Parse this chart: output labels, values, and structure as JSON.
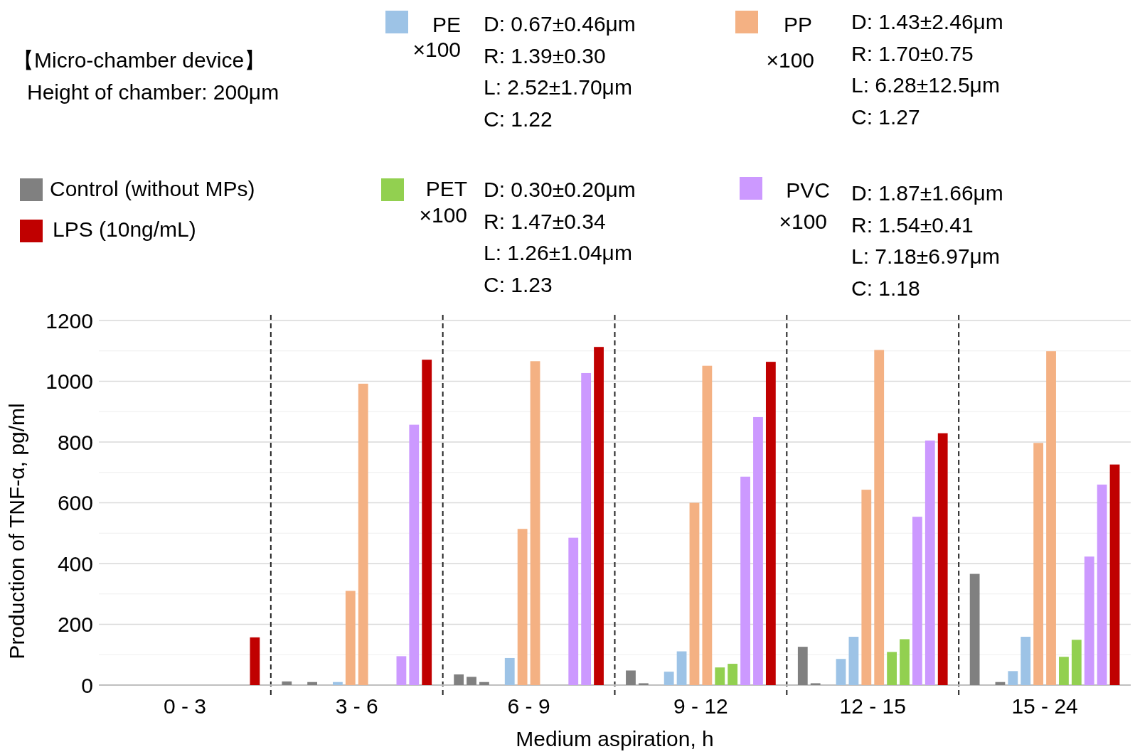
{
  "chart_data": {
    "type": "bar",
    "xlabel": "Medium aspiration, h",
    "ylabel": "Production of TNF-α, pg/ml",
    "categories": [
      "0 - 3",
      "3 - 6",
      "6 - 9",
      "9 - 12",
      "12 - 15",
      "15 - 24"
    ],
    "series": [
      {
        "name": "Control (without MPs)",
        "color": "#808080",
        "values": [
          null,
          12,
          35,
          48,
          126,
          366
        ]
      },
      {
        "color": "#808080",
        "values": [
          null,
          null,
          27,
          6,
          6,
          null
        ]
      },
      {
        "color": "#808080",
        "values": [
          null,
          10,
          10,
          null,
          null,
          10
        ]
      },
      {
        "name": "PE",
        "color": "#9dc3e6",
        "values": [
          null,
          null,
          null,
          44,
          86,
          46
        ]
      },
      {
        "color": "#9dc3e6",
        "values": [
          null,
          10,
          89,
          111,
          159,
          159
        ]
      },
      {
        "name": "PP",
        "color": "#f4b183",
        "values": [
          null,
          310,
          514,
          600,
          643,
          797
        ]
      },
      {
        "color": "#f4b183",
        "values": [
          null,
          992,
          1066,
          1051,
          1103,
          1099
        ]
      },
      {
        "name": "PET",
        "color": "#92d050",
        "values": [
          null,
          null,
          null,
          58,
          109,
          93
        ]
      },
      {
        "color": "#92d050",
        "values": [
          null,
          null,
          null,
          70,
          151,
          149
        ]
      },
      {
        "name": "PVC",
        "color": "#cc99ff",
        "values": [
          null,
          95,
          485,
          686,
          554,
          423
        ]
      },
      {
        "color": "#cc99ff",
        "values": [
          null,
          857,
          1027,
          882,
          805,
          660
        ]
      },
      {
        "name": "LPS (10ng/mL)",
        "color": "#c00000",
        "values": [
          157,
          1071,
          1113,
          1064,
          829,
          726
        ]
      }
    ],
    "ylim": [
      0,
      1200
    ],
    "yticks": [
      0,
      200,
      400,
      600,
      800,
      1000,
      1200
    ],
    "grid": "y",
    "legend": "top",
    "annotations": [
      "【Micro-chamber device】",
      "Height of chamber: 200μm",
      "×100",
      "D: 0.67±0.46μm\nR: 1.39±0.30\nL: 2.52±1.70μm\nC: 1.22",
      "×100",
      "D: 1.43±2.46μm\nR: 1.70±0.75\nL: 6.28±12.5μm\nC: 1.27",
      "×100",
      "D: 0.30±0.20μm\nR: 1.47±0.34\nL: 1.26±1.04μm\nC: 1.23",
      "×100",
      "D: 1.87±1.66μm\nR: 1.54±0.41\nL: 7.18±6.97μm\nC: 1.18"
    ]
  }
}
